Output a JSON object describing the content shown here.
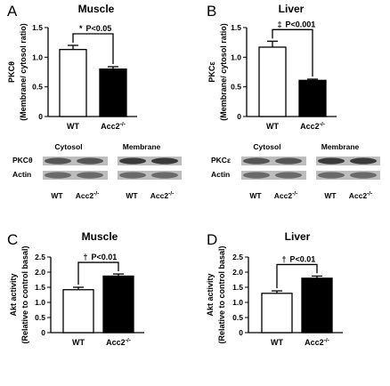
{
  "chart_data": [
    {
      "type": "bar",
      "panel_label": "A",
      "title": "Muscle",
      "ylabel": "PKCθ",
      "ylabel2": "(Membrane/ cytosol ratio)",
      "ylim": [
        0,
        1.5
      ],
      "yticks": [
        "0",
        "0.5",
        "1.0",
        "1.5"
      ],
      "categories": [
        "WT",
        "Acc2-/-"
      ],
      "values": [
        1.13,
        0.8
      ],
      "errors": [
        0.07,
        0.04
      ],
      "colors": [
        "#ffffff",
        "#000000"
      ],
      "significance": {
        "symbol": "*",
        "text": "P<0.05"
      },
      "blot": {
        "groups": [
          "Cytosol",
          "Membrane"
        ],
        "rows": [
          "PKCθ",
          "Actin"
        ],
        "lanes": [
          "WT",
          "Acc2-/-",
          "WT",
          "Acc2-/-"
        ]
      }
    },
    {
      "type": "bar",
      "panel_label": "B",
      "title": "Liver",
      "ylabel": "PKCε",
      "ylabel2": "(Membrane/ cytosol ratio)",
      "ylim": [
        0,
        1.5
      ],
      "yticks": [
        "0",
        "0.5",
        "1.0",
        "1.5"
      ],
      "categories": [
        "WT",
        "Acc2-/-"
      ],
      "values": [
        1.17,
        0.61
      ],
      "errors": [
        0.1,
        0.02
      ],
      "colors": [
        "#ffffff",
        "#000000"
      ],
      "significance": {
        "symbol": "‡",
        "text": "P<0.001"
      },
      "blot": {
        "groups": [
          "Cytosol",
          "Membrane"
        ],
        "rows": [
          "PKCε",
          "Actin"
        ],
        "lanes": [
          "WT",
          "Acc2-/-",
          "WT",
          "Acc2-/-"
        ]
      }
    },
    {
      "type": "bar",
      "panel_label": "C",
      "title": "Muscle",
      "ylabel": "Akt activity",
      "ylabel2": "(Relative to control basal)",
      "ylim": [
        0,
        2.5
      ],
      "yticks": [
        "0",
        "0.5",
        "1.0",
        "1.5",
        "2.0",
        "2.5"
      ],
      "categories": [
        "WT",
        "Acc2-/-"
      ],
      "values": [
        1.42,
        1.87
      ],
      "errors": [
        0.08,
        0.07
      ],
      "colors": [
        "#ffffff",
        "#000000"
      ],
      "significance": {
        "symbol": "†",
        "text": "P<0.01"
      }
    },
    {
      "type": "bar",
      "panel_label": "D",
      "title": "Liver",
      "ylabel": "Akt activity",
      "ylabel2": "(Relative to control basal)",
      "ylim": [
        0,
        2.5
      ],
      "yticks": [
        "0",
        "0.5",
        "1.0",
        "1.5",
        "2.0",
        "2.5"
      ],
      "categories": [
        "WT",
        "Acc2-/-"
      ],
      "values": [
        1.3,
        1.8
      ],
      "errors": [
        0.08,
        0.07
      ],
      "colors": [
        "#ffffff",
        "#000000"
      ],
      "significance": {
        "symbol": "†",
        "text": "P<0.01"
      }
    }
  ]
}
